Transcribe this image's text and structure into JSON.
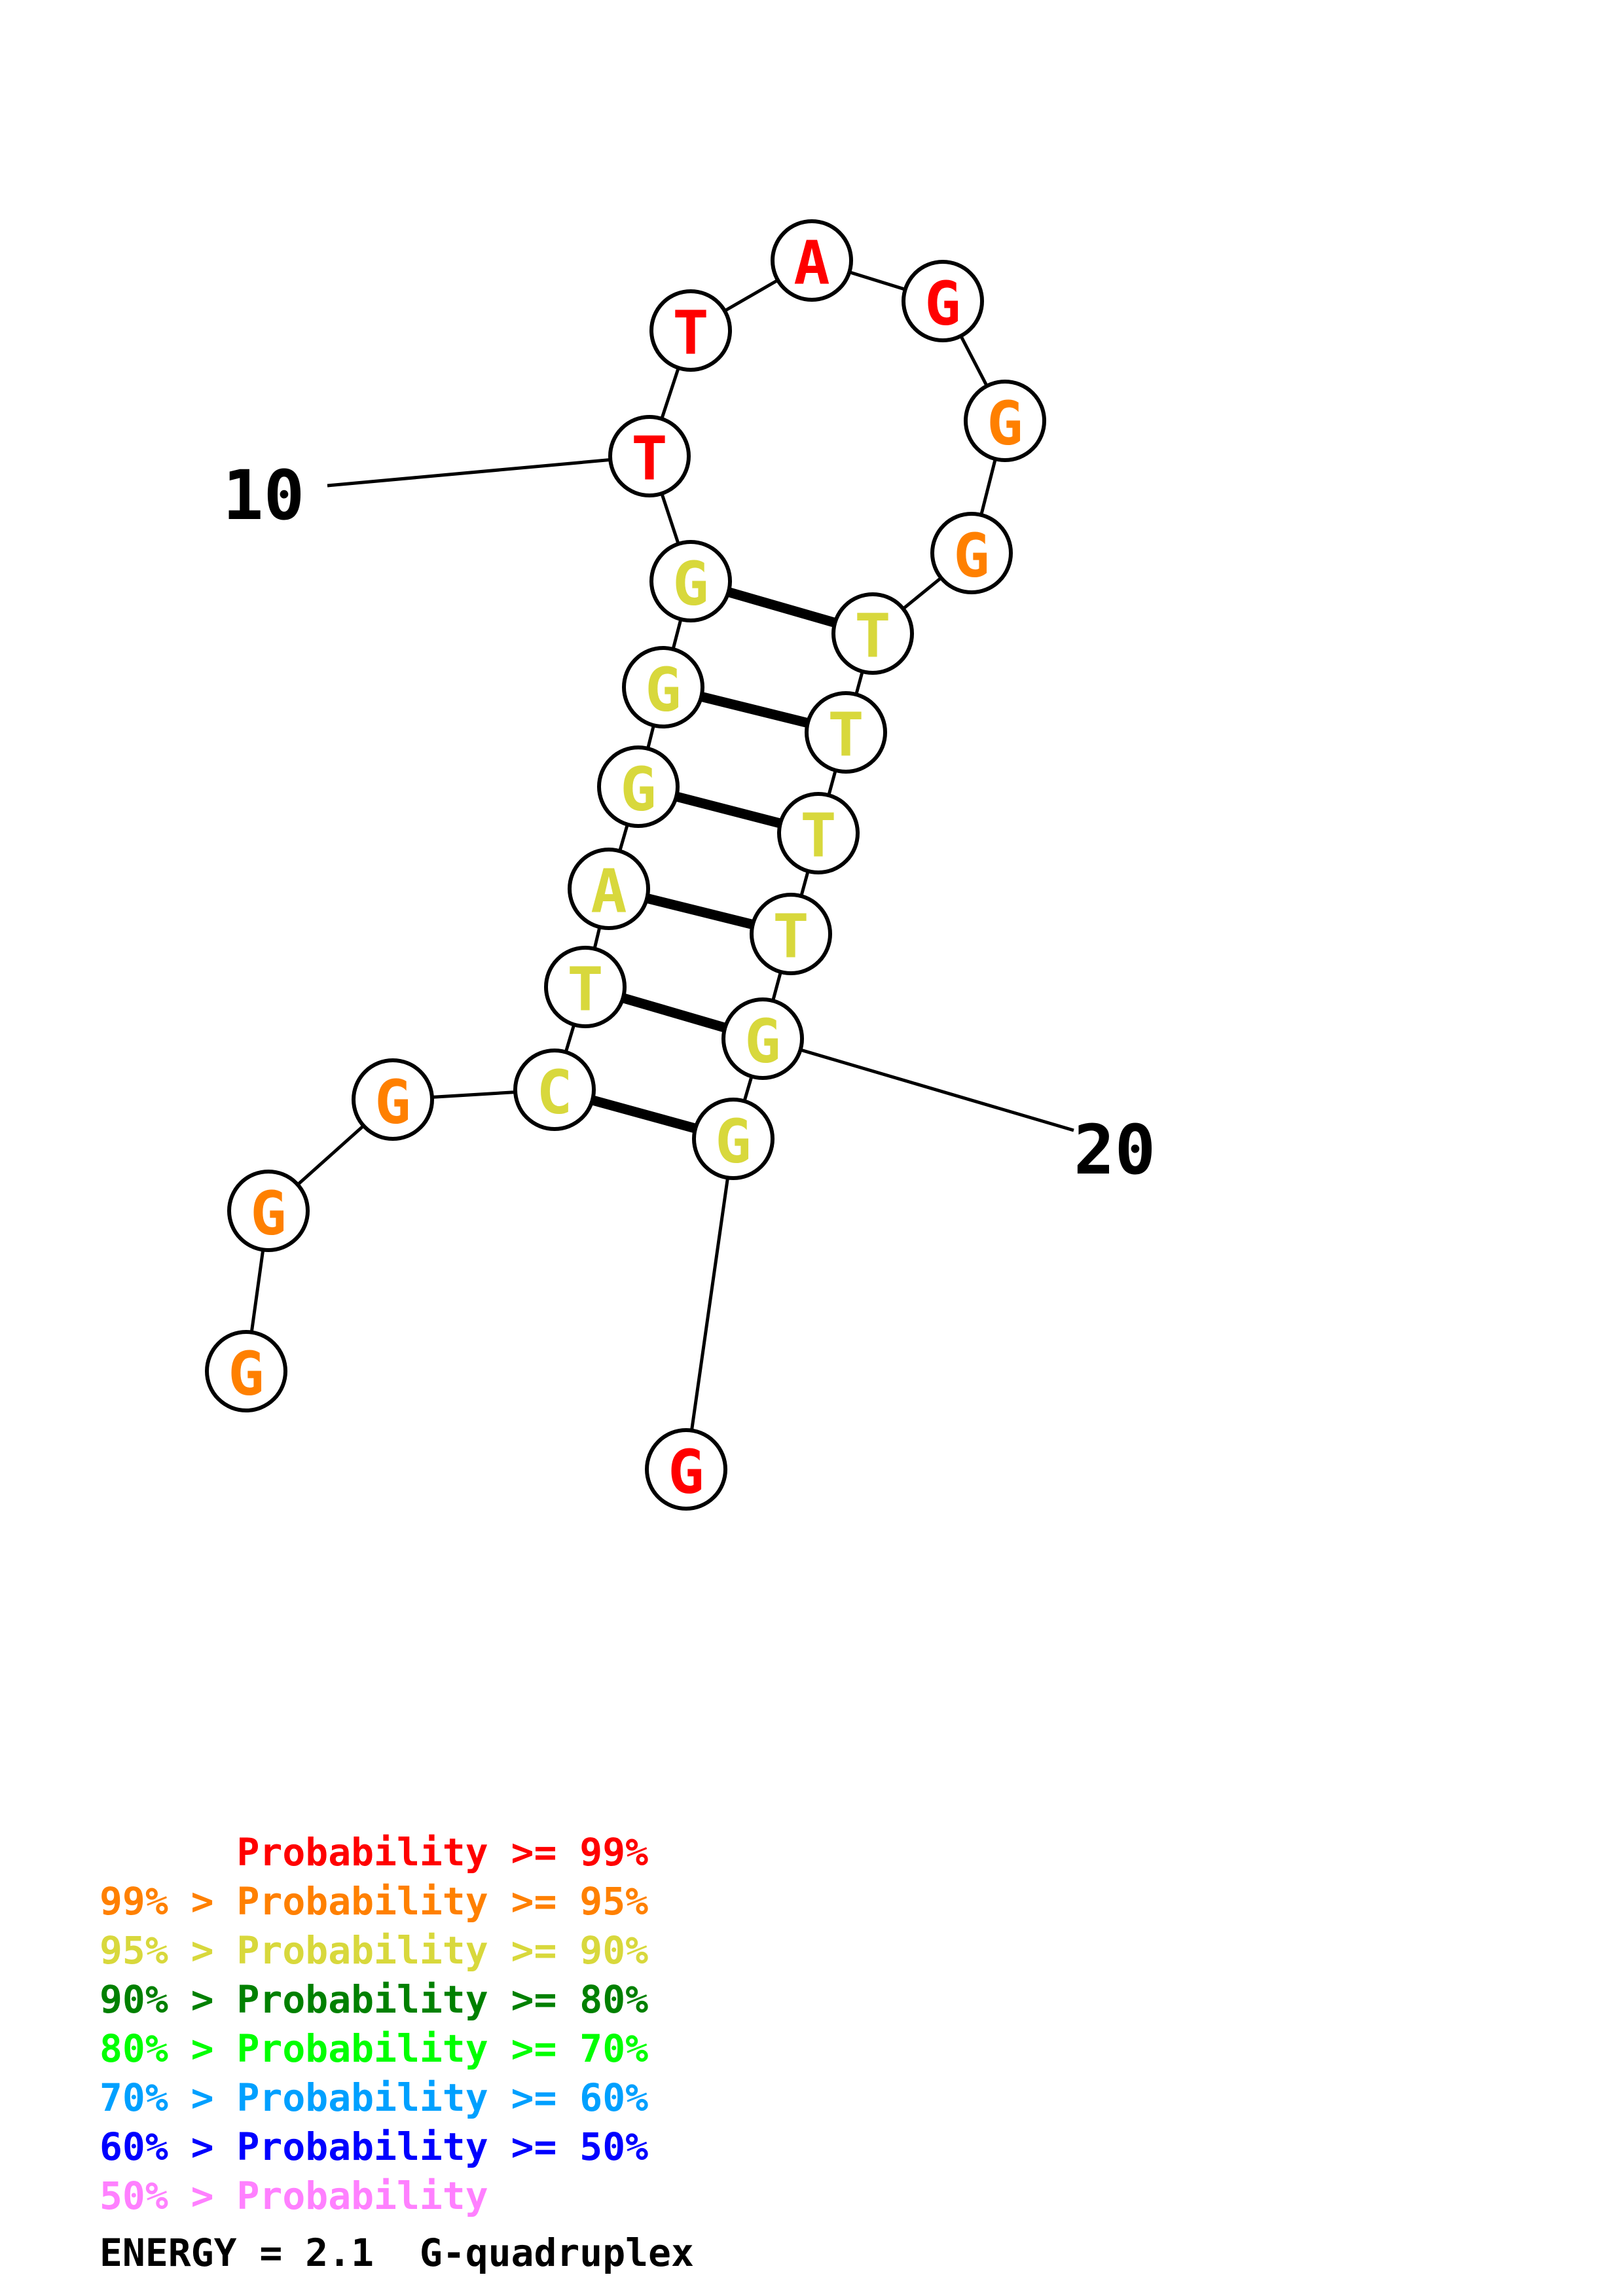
{
  "diagram": {
    "sequence": [
      "G",
      "G",
      "G",
      "C",
      "T",
      "A",
      "G",
      "G",
      "G",
      "T",
      "T",
      "A",
      "G",
      "G",
      "G",
      "T",
      "T",
      "T",
      "T",
      "G",
      "G",
      "G"
    ],
    "base_colors": [
      "#ff8000",
      "#ff8000",
      "#ff8000",
      "#d8d83c",
      "#d8d83c",
      "#d8d83c",
      "#d8d83c",
      "#d8d83c",
      "#d8d83c",
      "#ff0000",
      "#ff0000",
      "#ff0000",
      "#ff0000",
      "#ff8000",
      "#ff8000",
      "#d8d83c",
      "#d8d83c",
      "#d8d83c",
      "#d8d83c",
      "#d8d83c",
      "#d8d83c",
      "#ff0000"
    ],
    "pairs": [
      [
        4,
        21
      ],
      [
        5,
        20
      ],
      [
        6,
        19
      ],
      [
        7,
        18
      ],
      [
        8,
        17
      ],
      [
        9,
        16
      ]
    ],
    "labels": [
      {
        "index": 10,
        "text": "10"
      },
      {
        "index": 20,
        "text": "20"
      }
    ]
  },
  "legend": {
    "lines": [
      {
        "text": "      Probability >= 99%",
        "color": "#ff0000"
      },
      {
        "text": "99% > Probability >= 95%",
        "color": "#ff8000"
      },
      {
        "text": "95% > Probability >= 90%",
        "color": "#d8d83c"
      },
      {
        "text": "90% > Probability >= 80%",
        "color": "#008000"
      },
      {
        "text": "80% > Probability >= 70%",
        "color": "#00ff00"
      },
      {
        "text": "70% > Probability >= 60%",
        "color": "#00a0ff"
      },
      {
        "text": "60% > Probability >= 50%",
        "color": "#0000ff"
      },
      {
        "text": "50% > Probability",
        "color": "#ff80ff"
      }
    ],
    "energy": "ENERGY = 2.1  G-quadruplex"
  }
}
